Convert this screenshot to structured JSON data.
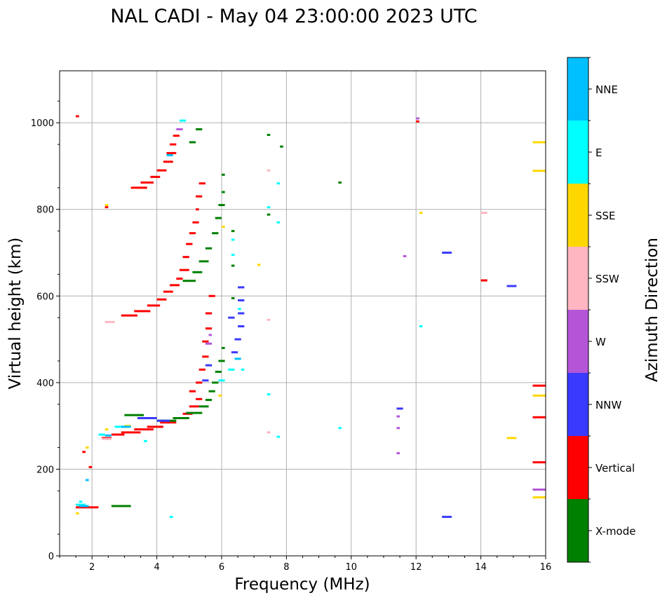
{
  "chart_data": {
    "type": "scatter",
    "title": "NAL CADI - May 04 23:00:00 2023 UTC",
    "xlabel": "Frequency (MHz)",
    "ylabel": "Virtual height (km)",
    "xlim": [
      1,
      16
    ],
    "ylim": [
      0,
      1120
    ],
    "xticks": [
      2,
      4,
      6,
      8,
      10,
      12,
      14,
      16
    ],
    "yticks": [
      0,
      200,
      400,
      600,
      800,
      1000
    ],
    "grid": true,
    "colorbar": {
      "title": "Azimuth Direction",
      "categories": [
        {
          "label": "X-mode",
          "color": "#008000"
        },
        {
          "label": "Vertical",
          "color": "#ff0000"
        },
        {
          "label": "NNW",
          "color": "#3a3aff"
        },
        {
          "label": "W",
          "color": "#b455d8"
        },
        {
          "label": "SSW",
          "color": "#ffb6c1"
        },
        {
          "label": "SSE",
          "color": "#ffd700"
        },
        {
          "label": "E",
          "color": "#00ffff"
        },
        {
          "label": "NNE",
          "color": "#00bfff"
        }
      ]
    },
    "series": [
      {
        "name": "Vertical",
        "segments": [
          [
            1.5,
            1.6,
            1015
          ],
          [
            1.5,
            2.2,
            112
          ],
          [
            2.4,
            2.5,
            805
          ],
          [
            1.7,
            1.8,
            240
          ],
          [
            1.9,
            2.0,
            205
          ],
          [
            2.3,
            2.6,
            272
          ],
          [
            2.6,
            3.0,
            280
          ],
          [
            2.9,
            3.5,
            285
          ],
          [
            3.3,
            3.9,
            292
          ],
          [
            3.7,
            4.2,
            298
          ],
          [
            4.1,
            4.6,
            308
          ],
          [
            4.5,
            4.9,
            318
          ],
          [
            4.8,
            5.1,
            328
          ],
          [
            5.0,
            5.3,
            345
          ],
          [
            5.2,
            5.4,
            362
          ],
          [
            5.0,
            5.2,
            380
          ],
          [
            5.2,
            5.4,
            400
          ],
          [
            5.3,
            5.5,
            430
          ],
          [
            5.4,
            5.6,
            460
          ],
          [
            5.4,
            5.6,
            495
          ],
          [
            5.5,
            5.7,
            525
          ],
          [
            5.5,
            5.7,
            560
          ],
          [
            5.6,
            5.8,
            600
          ],
          [
            2.9,
            3.4,
            555
          ],
          [
            3.3,
            3.8,
            565
          ],
          [
            3.7,
            4.1,
            578
          ],
          [
            4.0,
            4.3,
            592
          ],
          [
            4.2,
            4.5,
            610
          ],
          [
            4.4,
            4.7,
            625
          ],
          [
            4.6,
            4.8,
            640
          ],
          [
            4.7,
            5.0,
            660
          ],
          [
            4.8,
            5.0,
            690
          ],
          [
            4.9,
            5.1,
            720
          ],
          [
            5.0,
            5.2,
            745
          ],
          [
            5.1,
            5.3,
            770
          ],
          [
            5.2,
            5.3,
            800
          ],
          [
            5.2,
            5.4,
            830
          ],
          [
            5.3,
            5.5,
            860
          ],
          [
            3.2,
            3.7,
            850
          ],
          [
            3.5,
            3.9,
            862
          ],
          [
            3.8,
            4.1,
            875
          ],
          [
            4.0,
            4.3,
            890
          ],
          [
            4.2,
            4.5,
            910
          ],
          [
            4.3,
            4.6,
            930
          ],
          [
            4.4,
            4.6,
            950
          ],
          [
            4.5,
            4.7,
            970
          ],
          [
            12.0,
            12.1,
            1003
          ],
          [
            14.0,
            14.2,
            636
          ],
          [
            15.6,
            16.0,
            320
          ],
          [
            15.6,
            16.0,
            216
          ],
          [
            15.6,
            16.0,
            393
          ]
        ]
      },
      {
        "name": "X-mode",
        "segments": [
          [
            2.6,
            3.2,
            115
          ],
          [
            3.0,
            3.6,
            325
          ],
          [
            3.5,
            4.0,
            318
          ],
          [
            4.0,
            4.6,
            312
          ],
          [
            4.5,
            5.0,
            318
          ],
          [
            4.9,
            5.4,
            330
          ],
          [
            5.3,
            5.6,
            345
          ],
          [
            5.5,
            5.7,
            360
          ],
          [
            5.6,
            5.8,
            380
          ],
          [
            5.7,
            5.9,
            400
          ],
          [
            5.8,
            6.0,
            425
          ],
          [
            5.9,
            6.1,
            450
          ],
          [
            6.0,
            6.1,
            480
          ],
          [
            4.8,
            5.2,
            635
          ],
          [
            5.1,
            5.4,
            655
          ],
          [
            5.3,
            5.6,
            680
          ],
          [
            5.5,
            5.7,
            710
          ],
          [
            5.7,
            5.9,
            745
          ],
          [
            5.8,
            6.0,
            780
          ],
          [
            5.9,
            6.1,
            810
          ],
          [
            6.0,
            6.1,
            840
          ],
          [
            6.0,
            6.1,
            880
          ],
          [
            6.3,
            6.4,
            750
          ],
          [
            6.3,
            6.4,
            670
          ],
          [
            6.3,
            6.4,
            595
          ],
          [
            5.0,
            5.2,
            955
          ],
          [
            5.2,
            5.4,
            985
          ],
          [
            7.4,
            7.5,
            972
          ],
          [
            7.8,
            7.9,
            945
          ],
          [
            9.6,
            9.7,
            862
          ],
          [
            7.4,
            7.5,
            788
          ]
        ]
      },
      {
        "name": "NNW",
        "segments": [
          [
            3.4,
            4.0,
            318
          ],
          [
            4.0,
            4.4,
            312
          ],
          [
            5.4,
            5.6,
            405
          ],
          [
            5.5,
            5.7,
            440
          ],
          [
            6.3,
            6.5,
            470
          ],
          [
            6.4,
            6.6,
            500
          ],
          [
            6.5,
            6.7,
            530
          ],
          [
            6.5,
            6.7,
            560
          ],
          [
            6.5,
            6.7,
            590
          ],
          [
            6.5,
            6.7,
            620
          ],
          [
            6.2,
            6.4,
            550
          ],
          [
            11.4,
            11.6,
            340
          ],
          [
            12.8,
            13.1,
            700
          ],
          [
            12.8,
            13.1,
            90
          ],
          [
            14.8,
            15.1,
            623
          ]
        ]
      },
      {
        "name": "W",
        "segments": [
          [
            4.6,
            4.8,
            985
          ],
          [
            5.5,
            5.7,
            490
          ],
          [
            5.6,
            5.7,
            510
          ],
          [
            11.4,
            11.5,
            322
          ],
          [
            11.4,
            11.5,
            295
          ],
          [
            11.4,
            11.5,
            237
          ],
          [
            11.6,
            11.7,
            692
          ],
          [
            12.0,
            12.1,
            1010
          ],
          [
            15.6,
            16.0,
            153
          ]
        ]
      },
      {
        "name": "SSW",
        "segments": [
          [
            2.4,
            2.7,
            540
          ],
          [
            2.3,
            2.6,
            270
          ],
          [
            7.4,
            7.5,
            890
          ],
          [
            7.4,
            7.5,
            545
          ],
          [
            7.4,
            7.5,
            285
          ],
          [
            14.0,
            14.2,
            792
          ]
        ]
      },
      {
        "name": "SSE",
        "segments": [
          [
            1.5,
            1.6,
            98
          ],
          [
            1.8,
            1.9,
            250
          ],
          [
            2.4,
            2.5,
            810
          ],
          [
            2.4,
            2.5,
            292
          ],
          [
            3.0,
            3.2,
            300
          ],
          [
            5.9,
            6.0,
            370
          ],
          [
            6.0,
            6.1,
            760
          ],
          [
            7.1,
            7.2,
            672
          ],
          [
            12.1,
            12.2,
            792
          ],
          [
            14.8,
            15.1,
            272
          ],
          [
            15.6,
            16.0,
            955
          ],
          [
            15.6,
            16.0,
            889
          ],
          [
            15.6,
            16.0,
            370
          ],
          [
            15.6,
            16.0,
            135
          ]
        ]
      },
      {
        "name": "E",
        "segments": [
          [
            1.5,
            1.8,
            118
          ],
          [
            2.2,
            2.4,
            280
          ],
          [
            2.7,
            3.0,
            298
          ],
          [
            3.6,
            3.7,
            265
          ],
          [
            4.4,
            4.5,
            90
          ],
          [
            5.9,
            6.1,
            405
          ],
          [
            6.2,
            6.4,
            430
          ],
          [
            6.3,
            6.4,
            695
          ],
          [
            6.3,
            6.4,
            730
          ],
          [
            6.5,
            6.6,
            570
          ],
          [
            6.6,
            6.7,
            430
          ],
          [
            7.4,
            7.5,
            805
          ],
          [
            7.4,
            7.5,
            373
          ],
          [
            7.7,
            7.8,
            860
          ],
          [
            7.7,
            7.8,
            770
          ],
          [
            7.7,
            7.8,
            275
          ],
          [
            9.6,
            9.7,
            295
          ],
          [
            12.1,
            12.2,
            530
          ],
          [
            4.7,
            4.9,
            1005
          ],
          [
            1.6,
            1.7,
            125
          ]
        ]
      },
      {
        "name": "NNE",
        "segments": [
          [
            1.6,
            1.9,
            115
          ],
          [
            2.4,
            2.6,
            278
          ],
          [
            2.9,
            3.2,
            298
          ],
          [
            4.3,
            4.5,
            925
          ],
          [
            1.8,
            1.9,
            175
          ],
          [
            6.4,
            6.6,
            455
          ]
        ]
      }
    ]
  }
}
